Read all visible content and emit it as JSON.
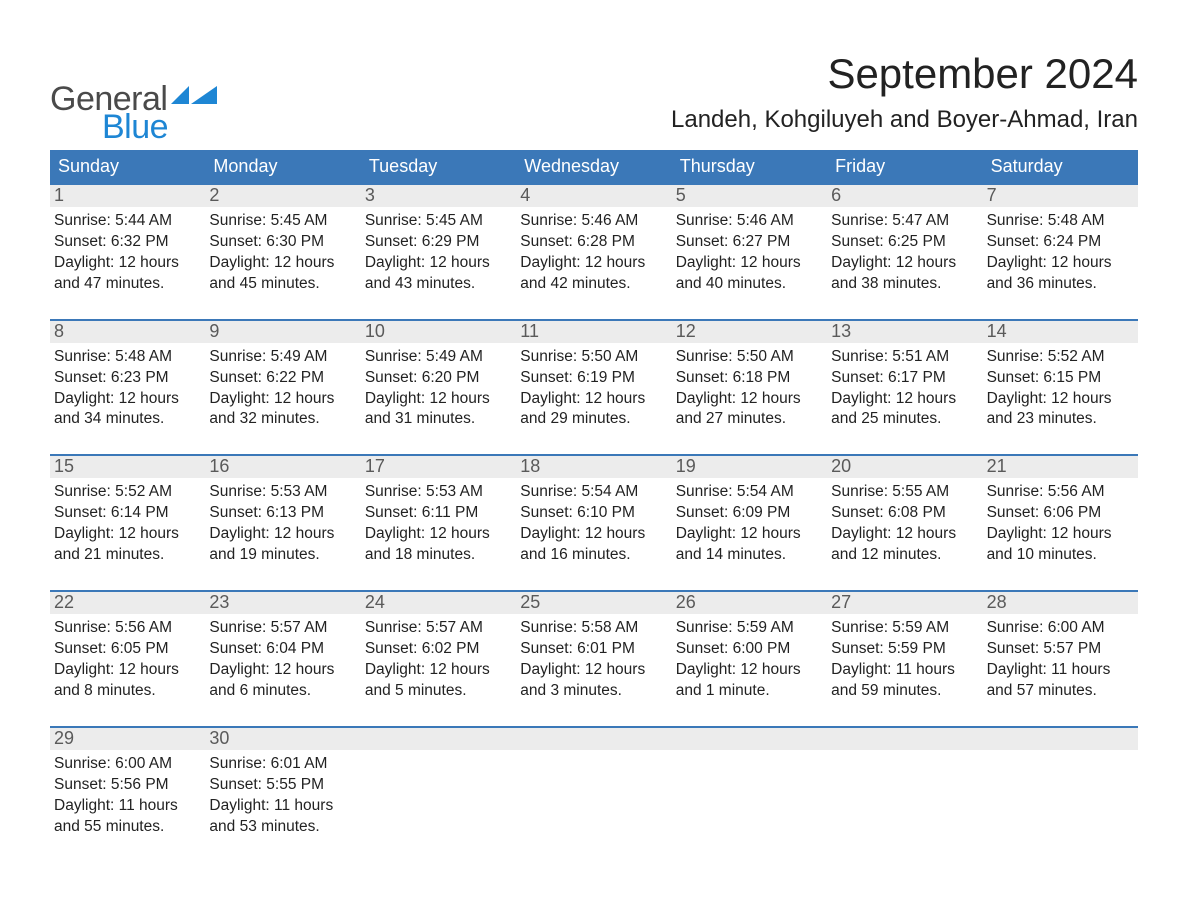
{
  "logo": {
    "line1": "General",
    "line2": "Blue"
  },
  "title": "September 2024",
  "location": "Landeh, Kohgiluyeh and Boyer-Ahmad, Iran",
  "colors": {
    "header_blue": "#3b78b8",
    "accent_blue": "#1e86d4",
    "row_gray": "#ececec",
    "text_black": "#222222",
    "text_gray": "#5a5a5a"
  },
  "typography": {
    "title_fontsize": 42,
    "location_fontsize": 24,
    "dow_fontsize": 18,
    "daynum_fontsize": 18,
    "detail_fontsize": 15.5
  },
  "days_of_week": [
    "Sunday",
    "Monday",
    "Tuesday",
    "Wednesday",
    "Thursday",
    "Friday",
    "Saturday"
  ],
  "labels": {
    "sunrise": "Sunrise:",
    "sunset": "Sunset:",
    "daylight": "Daylight:"
  },
  "weeks": [
    [
      {
        "num": "1",
        "sunrise": "5:44 AM",
        "sunset": "6:32 PM",
        "daylight": "12 hours and 47 minutes."
      },
      {
        "num": "2",
        "sunrise": "5:45 AM",
        "sunset": "6:30 PM",
        "daylight": "12 hours and 45 minutes."
      },
      {
        "num": "3",
        "sunrise": "5:45 AM",
        "sunset": "6:29 PM",
        "daylight": "12 hours and 43 minutes."
      },
      {
        "num": "4",
        "sunrise": "5:46 AM",
        "sunset": "6:28 PM",
        "daylight": "12 hours and 42 minutes."
      },
      {
        "num": "5",
        "sunrise": "5:46 AM",
        "sunset": "6:27 PM",
        "daylight": "12 hours and 40 minutes."
      },
      {
        "num": "6",
        "sunrise": "5:47 AM",
        "sunset": "6:25 PM",
        "daylight": "12 hours and 38 minutes."
      },
      {
        "num": "7",
        "sunrise": "5:48 AM",
        "sunset": "6:24 PM",
        "daylight": "12 hours and 36 minutes."
      }
    ],
    [
      {
        "num": "8",
        "sunrise": "5:48 AM",
        "sunset": "6:23 PM",
        "daylight": "12 hours and 34 minutes."
      },
      {
        "num": "9",
        "sunrise": "5:49 AM",
        "sunset": "6:22 PM",
        "daylight": "12 hours and 32 minutes."
      },
      {
        "num": "10",
        "sunrise": "5:49 AM",
        "sunset": "6:20 PM",
        "daylight": "12 hours and 31 minutes."
      },
      {
        "num": "11",
        "sunrise": "5:50 AM",
        "sunset": "6:19 PM",
        "daylight": "12 hours and 29 minutes."
      },
      {
        "num": "12",
        "sunrise": "5:50 AM",
        "sunset": "6:18 PM",
        "daylight": "12 hours and 27 minutes."
      },
      {
        "num": "13",
        "sunrise": "5:51 AM",
        "sunset": "6:17 PM",
        "daylight": "12 hours and 25 minutes."
      },
      {
        "num": "14",
        "sunrise": "5:52 AM",
        "sunset": "6:15 PM",
        "daylight": "12 hours and 23 minutes."
      }
    ],
    [
      {
        "num": "15",
        "sunrise": "5:52 AM",
        "sunset": "6:14 PM",
        "daylight": "12 hours and 21 minutes."
      },
      {
        "num": "16",
        "sunrise": "5:53 AM",
        "sunset": "6:13 PM",
        "daylight": "12 hours and 19 minutes."
      },
      {
        "num": "17",
        "sunrise": "5:53 AM",
        "sunset": "6:11 PM",
        "daylight": "12 hours and 18 minutes."
      },
      {
        "num": "18",
        "sunrise": "5:54 AM",
        "sunset": "6:10 PM",
        "daylight": "12 hours and 16 minutes."
      },
      {
        "num": "19",
        "sunrise": "5:54 AM",
        "sunset": "6:09 PM",
        "daylight": "12 hours and 14 minutes."
      },
      {
        "num": "20",
        "sunrise": "5:55 AM",
        "sunset": "6:08 PM",
        "daylight": "12 hours and 12 minutes."
      },
      {
        "num": "21",
        "sunrise": "5:56 AM",
        "sunset": "6:06 PM",
        "daylight": "12 hours and 10 minutes."
      }
    ],
    [
      {
        "num": "22",
        "sunrise": "5:56 AM",
        "sunset": "6:05 PM",
        "daylight": "12 hours and 8 minutes."
      },
      {
        "num": "23",
        "sunrise": "5:57 AM",
        "sunset": "6:04 PM",
        "daylight": "12 hours and 6 minutes."
      },
      {
        "num": "24",
        "sunrise": "5:57 AM",
        "sunset": "6:02 PM",
        "daylight": "12 hours and 5 minutes."
      },
      {
        "num": "25",
        "sunrise": "5:58 AM",
        "sunset": "6:01 PM",
        "daylight": "12 hours and 3 minutes."
      },
      {
        "num": "26",
        "sunrise": "5:59 AM",
        "sunset": "6:00 PM",
        "daylight": "12 hours and 1 minute."
      },
      {
        "num": "27",
        "sunrise": "5:59 AM",
        "sunset": "5:59 PM",
        "daylight": "11 hours and 59 minutes."
      },
      {
        "num": "28",
        "sunrise": "6:00 AM",
        "sunset": "5:57 PM",
        "daylight": "11 hours and 57 minutes."
      }
    ],
    [
      {
        "num": "29",
        "sunrise": "6:00 AM",
        "sunset": "5:56 PM",
        "daylight": "11 hours and 55 minutes."
      },
      {
        "num": "30",
        "sunrise": "6:01 AM",
        "sunset": "5:55 PM",
        "daylight": "11 hours and 53 minutes."
      },
      null,
      null,
      null,
      null,
      null
    ]
  ]
}
